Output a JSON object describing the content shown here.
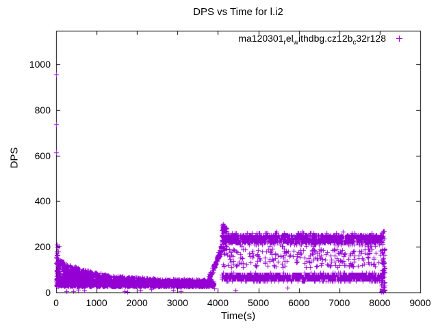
{
  "chart_data": {
    "type": "scatter",
    "title": "DPS vs Time for l.i2",
    "xlabel": "Time(s)",
    "ylabel": "DPS",
    "xlim": [
      0,
      9000
    ],
    "ylim": [
      0,
      1147
    ],
    "xticks": [
      0,
      1000,
      2000,
      3000,
      4000,
      5000,
      6000,
      7000,
      8000,
      9000
    ],
    "yticks": [
      0,
      200,
      400,
      600,
      800,
      1000
    ],
    "grid": false,
    "background_color": "#ffffff",
    "axis_color": "#000000",
    "legend": {
      "position": "top-right-inside",
      "marker": "plus",
      "label_plain": "ma120301_rel_withdbg.cz12b_c32r128",
      "label_parts": [
        {
          "text": "ma120301"
        },
        {
          "text": "r",
          "sub": true
        },
        {
          "text": "el"
        },
        {
          "text": "w",
          "sub": true
        },
        {
          "text": "ithdbg.cz12b"
        },
        {
          "text": "c",
          "sub": true
        },
        {
          "text": "32r128"
        }
      ]
    },
    "series": [
      {
        "name": "ma120301_rel_withdbg.cz12b_c32r128",
        "color": "#9400d3",
        "marker": "plus",
        "marker_size": 7,
        "point_generation": {
          "seed": 1337,
          "segments": [
            {
              "name": "initial-burst",
              "t": [
                0,
                70
              ],
              "count": 42,
              "y_dist": "uniform",
              "y": [
                24,
                212
              ]
            },
            {
              "name": "decay-band",
              "t": [
                0,
                3900
              ],
              "count": 2700,
              "y_dist": "decay",
              "y_floor": 30,
              "env_base": 54,
              "env_amp": 102,
              "env_tau": 850,
              "bias": 1.7,
              "jitter": 8
            },
            {
              "name": "transition-ramp",
              "t": [
                3760,
                4085
              ],
              "count": 95,
              "y_dist": "ramp",
              "y_start": 55,
              "y_end": 192,
              "jitter": 26
            },
            {
              "name": "upper-band",
              "t": [
                4085,
                8055
              ],
              "count": 1550,
              "y_dist": "band",
              "y_center": 235,
              "y_spread": 38,
              "y_min": 183,
              "y_max": 302,
              "quant": 7
            },
            {
              "name": "lower-band",
              "t": [
                4085,
                8055
              ],
              "count": 1550,
              "y_dist": "band",
              "y_center": 68,
              "y_spread": 24,
              "y_min": 33,
              "y_max": 107,
              "quant": 9
            },
            {
              "name": "mid-scatter",
              "t": [
                4110,
                8040
              ],
              "count": 230,
              "y_dist": "uniform",
              "y": [
                110,
                192
              ]
            },
            {
              "name": "start-spike",
              "t": [
                4085,
                4230
              ],
              "count": 60,
              "y_dist": "uniform",
              "y": [
                185,
                300
              ]
            },
            {
              "name": "end-drop",
              "t": [
                8040,
                8125
              ],
              "count": 65,
              "y_dist": "uniform",
              "y": [
                2,
                282
              ]
            }
          ],
          "outlier_points": [
            [
              4,
              955
            ],
            [
              4,
              737
            ],
            [
              7,
              613
            ],
            [
              9,
              210
            ],
            [
              11,
              180
            ],
            [
              255,
              7
            ],
            [
              420,
              6
            ],
            [
              545,
              12
            ],
            [
              700,
              9
            ],
            [
              1690,
              6
            ],
            [
              1765,
              4
            ],
            [
              2080,
              10
            ],
            [
              2355,
              14
            ],
            [
              2900,
              9
            ],
            [
              3085,
              7
            ],
            [
              3900,
              18
            ],
            [
              4435,
              8
            ],
            [
              5720,
              22
            ],
            [
              8085,
              2
            ],
            [
              8090,
              6
            ]
          ]
        }
      }
    ]
  }
}
